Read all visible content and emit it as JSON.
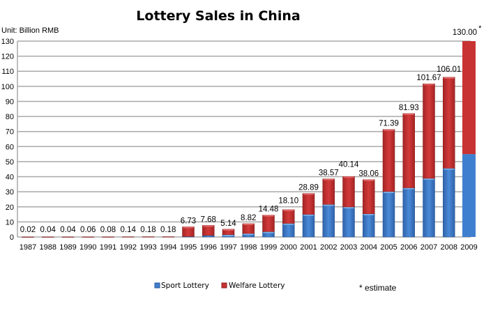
{
  "chart_data": {
    "type": "bar",
    "stacked": true,
    "title": "Lottery Sales in China",
    "unit_label": "Unit: Billion RMB",
    "ylim": [
      0,
      130
    ],
    "yticks": [
      0,
      10,
      20,
      30,
      40,
      50,
      60,
      70,
      80,
      90,
      100,
      110,
      120,
      130
    ],
    "grid": true,
    "legend_placement": "bottom",
    "categories": [
      "1987",
      "1988",
      "1989",
      "1990",
      "1991",
      "1992",
      "1993",
      "1994",
      "1995",
      "1996",
      "1997",
      "1998",
      "1999",
      "2000",
      "2001",
      "2002",
      "2003",
      "2004",
      "2005",
      "2006",
      "2007",
      "2008",
      "2009"
    ],
    "series": [
      {
        "name": "Sport Lottery",
        "color": "#3f7fcf",
        "values": [
          0,
          0,
          0,
          0,
          0,
          0,
          0,
          0,
          0.3,
          1.0,
          1.5,
          2.3,
          3.5,
          9.0,
          15.0,
          21.6,
          19.9,
          15.4,
          30.1,
          32.6,
          38.9,
          45.6,
          55.0
        ]
      },
      {
        "name": "Welfare Lottery",
        "color": "#c83232",
        "values": [
          0.02,
          0.04,
          0.04,
          0.06,
          0.08,
          0.14,
          0.18,
          0.18,
          6.43,
          6.68,
          3.64,
          6.52,
          10.98,
          9.1,
          13.89,
          16.97,
          20.24,
          22.66,
          41.29,
          49.33,
          62.77,
          60.41,
          75.0
        ]
      }
    ],
    "data_labels": [
      "0.02",
      "0.04",
      "0.04",
      "0.06",
      "0.08",
      "0.14",
      "0.18",
      "0.18",
      "6.73",
      "7.68",
      "5.14",
      "8.82",
      "14.48",
      "18.10",
      "28.89",
      "38.57",
      "40.14",
      "38.06",
      "71.39",
      "81.93",
      "101.67",
      "106.01",
      "130.00"
    ],
    "estimate_marker": "*",
    "estimate_note": "* estimate"
  }
}
